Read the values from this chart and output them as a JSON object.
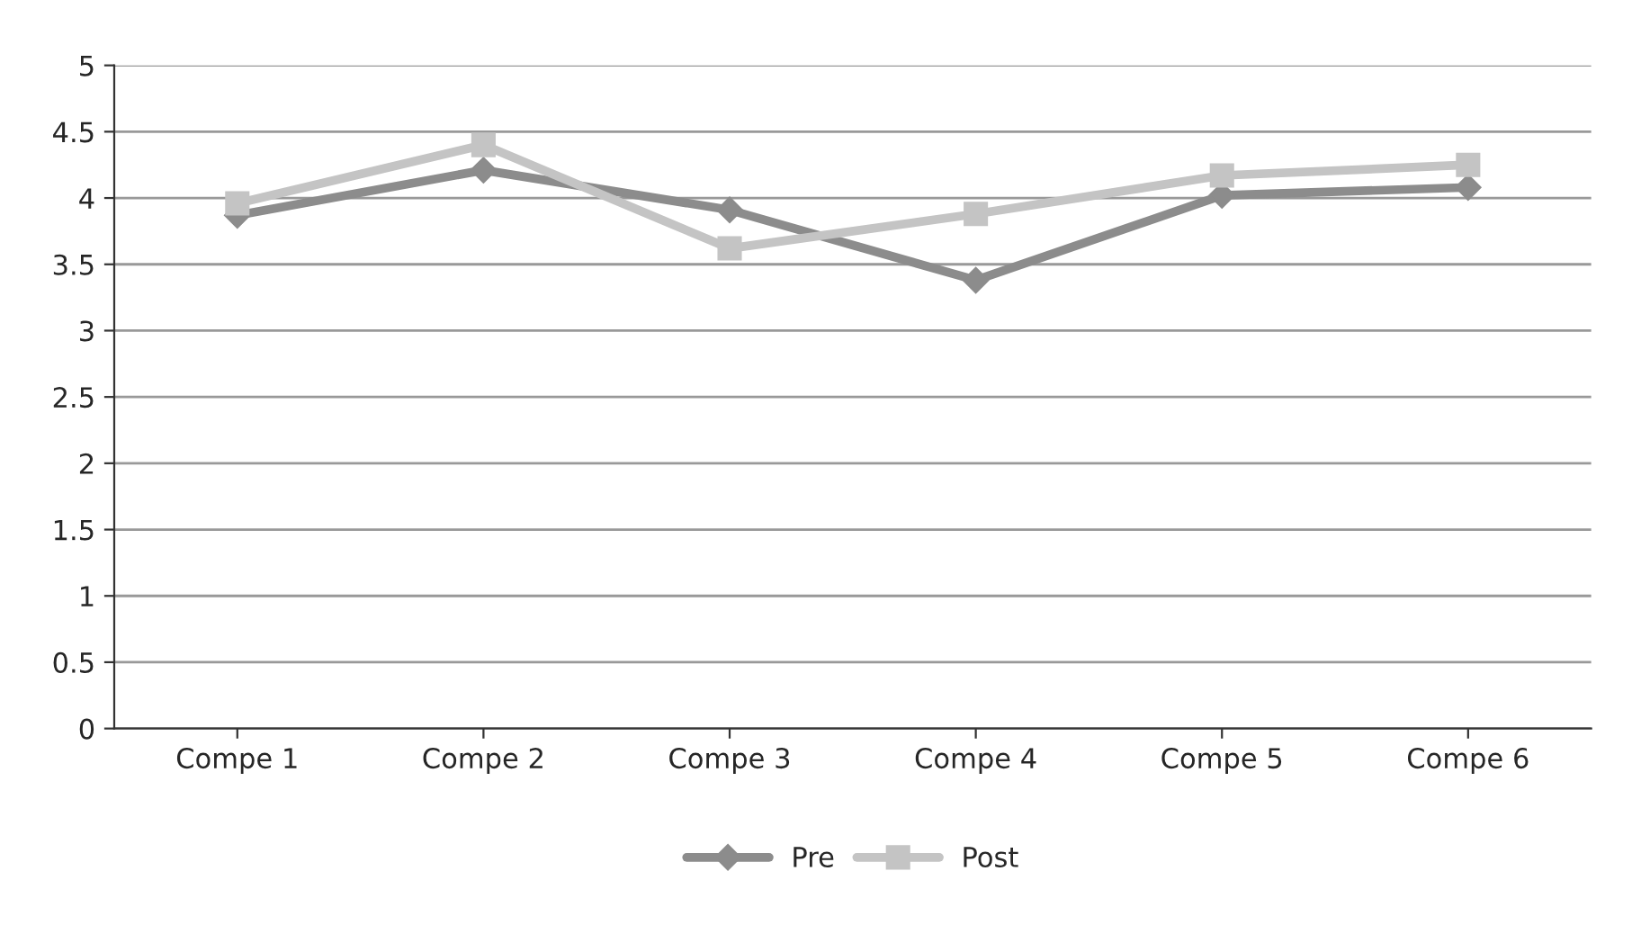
{
  "chart_data": {
    "type": "line",
    "categories": [
      "Compe 1",
      "Compe 2",
      "Compe 3",
      "Compe 4",
      "Compe 5",
      "Compe 6"
    ],
    "series": [
      {
        "name": "Pre",
        "color": "#8c8c8c",
        "marker": "diamond",
        "values": [
          3.87,
          4.21,
          3.91,
          3.38,
          4.02,
          4.08
        ]
      },
      {
        "name": "Post",
        "color": "#c4c4c4",
        "marker": "square",
        "values": [
          3.96,
          4.4,
          3.62,
          3.88,
          4.17,
          4.25
        ]
      }
    ],
    "ylim": [
      0,
      5
    ],
    "yticks": [
      0,
      0.5,
      1,
      1.5,
      2,
      2.5,
      3,
      3.5,
      4,
      4.5,
      5
    ],
    "grid": "y",
    "legend": "bottom"
  }
}
